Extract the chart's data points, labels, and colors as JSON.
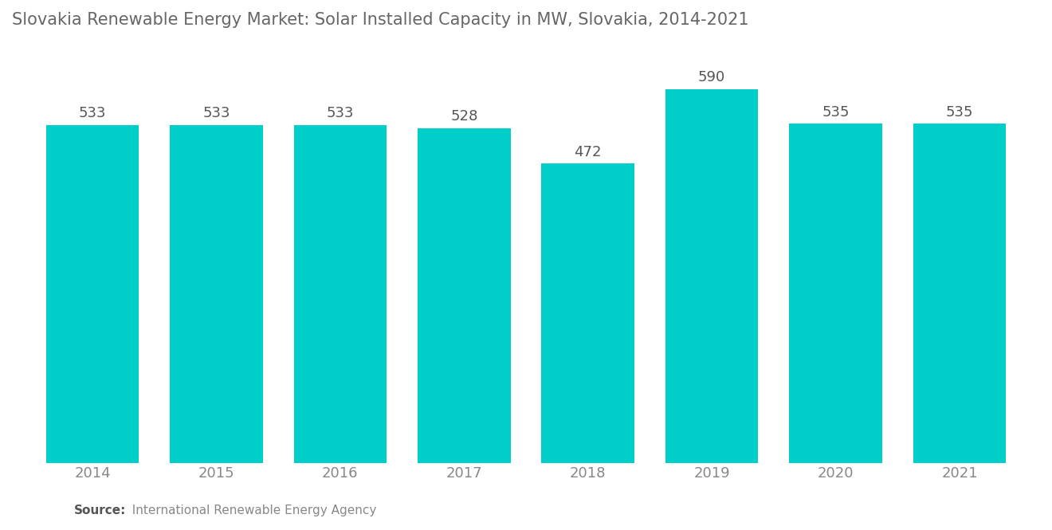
{
  "title": "Slovakia Renewable Energy Market: Solar Installed Capacity in MW, Slovakia, 2014-2021",
  "years": [
    2014,
    2015,
    2016,
    2017,
    2018,
    2019,
    2020,
    2021
  ],
  "values": [
    533,
    533,
    533,
    528,
    472,
    590,
    535,
    535
  ],
  "bar_color": "#00CEC9",
  "background_color": "#ffffff",
  "title_fontsize": 15,
  "tick_fontsize": 13,
  "annotation_fontsize": 13,
  "source_label_bold": "Source:",
  "source_label_rest": "  International Renewable Energy Agency",
  "bar_width": 0.75,
  "ylim_min": 0,
  "ylim_max": 660,
  "title_color": "#666666",
  "tick_color": "#888888",
  "annotation_color": "#555555"
}
